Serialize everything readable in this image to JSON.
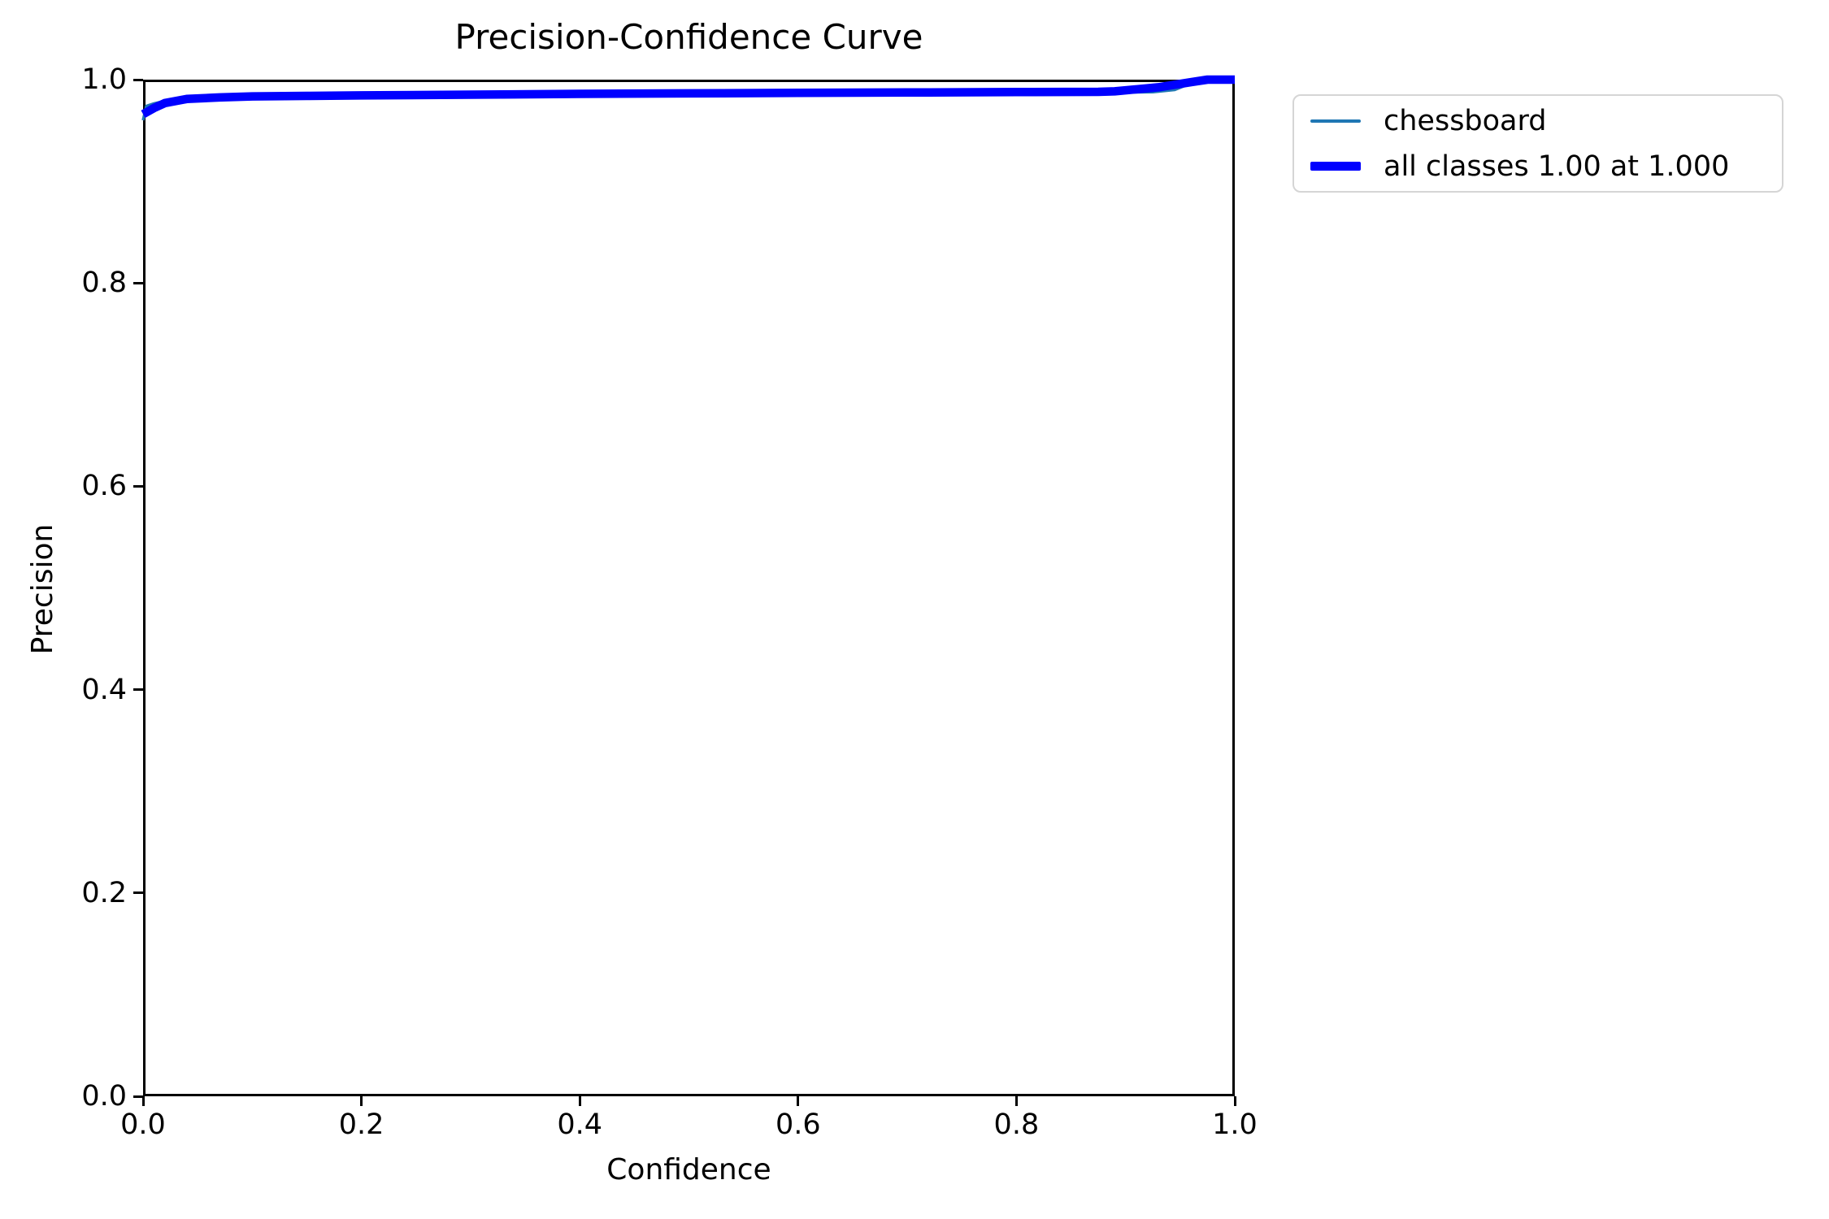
{
  "title": "Precision-Confidence Curve",
  "axes": {
    "xlabel": "Confidence",
    "ylabel": "Precision",
    "x_ticks": [
      "0.0",
      "0.2",
      "0.4",
      "0.6",
      "0.8",
      "1.0"
    ],
    "y_ticks": [
      "1.0",
      "0.8",
      "0.6",
      "0.4",
      "0.2",
      "0.0"
    ]
  },
  "legend": {
    "items": [
      {
        "label": "chessboard",
        "color": "#1f77b4",
        "swatch_thickness": 4
      },
      {
        "label": "all classes 1.00 at 1.000",
        "color": "#0000ff",
        "swatch_thickness": 11
      }
    ]
  },
  "colors": {
    "chessboard_line": "#1f77b4",
    "all_classes_line": "#0000ff",
    "axis": "#000000",
    "legend_border": "#d5d5d5",
    "background": "#ffffff"
  },
  "chart_data": {
    "type": "line",
    "title": "Precision-Confidence Curve",
    "xlabel": "Confidence",
    "ylabel": "Precision",
    "xlim": [
      0.0,
      1.0
    ],
    "ylim": [
      0.0,
      1.0
    ],
    "grid": false,
    "legend_position": "outside upper right",
    "annotation": "all classes reach precision 1.00 at confidence 1.000",
    "series": [
      {
        "name": "chessboard",
        "color": "#1f77b4",
        "linewidth": 3.5,
        "x": [
          0.0,
          0.003,
          0.01,
          0.02,
          0.04,
          0.07,
          0.1,
          0.15,
          0.2,
          0.3,
          0.4,
          0.5,
          0.6,
          0.7,
          0.8,
          0.875,
          0.9,
          0.925,
          0.945,
          0.96,
          0.972,
          1.0
        ],
        "y": [
          0.96,
          0.974,
          0.9765,
          0.979,
          0.9815,
          0.9825,
          0.9833,
          0.9839,
          0.9844,
          0.9851,
          0.9858,
          0.9863,
          0.9868,
          0.9872,
          0.9876,
          0.9878,
          0.9875,
          0.9878,
          0.99,
          0.9965,
          1.0,
          1.0
        ]
      },
      {
        "name": "all classes 1.00 at 1.000",
        "color": "#0000ff",
        "linewidth": 10.5,
        "x": [
          0.0,
          0.005,
          0.01,
          0.02,
          0.04,
          0.07,
          0.1,
          0.15,
          0.2,
          0.3,
          0.4,
          0.5,
          0.6,
          0.7,
          0.8,
          0.875,
          0.89,
          0.93,
          0.96,
          0.975,
          1.0
        ],
        "y": [
          0.966,
          0.969,
          0.972,
          0.977,
          0.981,
          0.9825,
          0.9835,
          0.984,
          0.9845,
          0.9852,
          0.986,
          0.9865,
          0.987,
          0.9874,
          0.9878,
          0.988,
          0.9885,
          0.9925,
          0.9975,
          1.0,
          1.0
        ]
      }
    ]
  }
}
